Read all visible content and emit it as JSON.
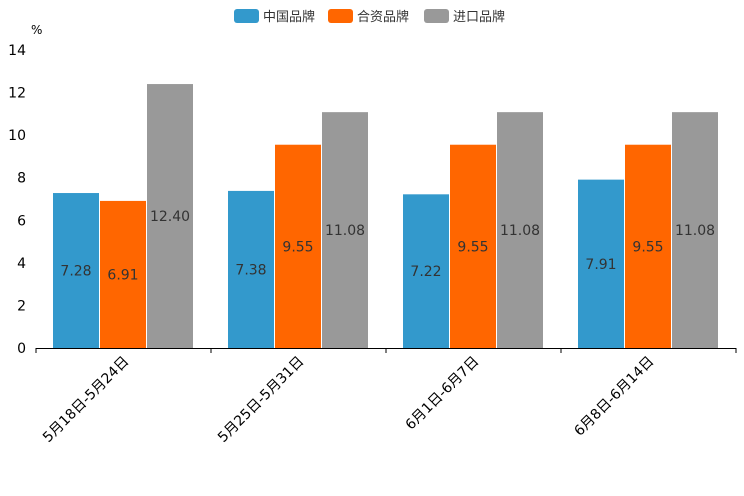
{
  "chart_data": {
    "type": "bar",
    "ylabel": "%",
    "ylim": [
      0,
      14
    ],
    "yticks": [
      "0",
      "2",
      "4",
      "6",
      "8",
      "10",
      "12",
      "14"
    ],
    "categories": [
      "5月18日-5月24日",
      "5月25日-5月31日",
      "6月1日-6月7日",
      "6月8日-6月14日"
    ],
    "series": [
      {
        "name": "中国品牌",
        "color": "#3399cc",
        "values": [
          7.28,
          7.38,
          7.22,
          7.91
        ],
        "labels": [
          "7.28",
          "7.38",
          "7.22",
          "7.91"
        ]
      },
      {
        "name": "合资品牌",
        "color": "#ff6600",
        "values": [
          6.91,
          9.55,
          9.55,
          9.55
        ],
        "labels": [
          "6.91",
          "9.55",
          "9.55",
          "9.55"
        ]
      },
      {
        "name": "进口品牌",
        "color": "#999999",
        "values": [
          12.4,
          11.08,
          11.08,
          11.08
        ],
        "labels": [
          "12.40",
          "11.08",
          "11.08",
          "11.08"
        ]
      }
    ],
    "legend": "top-center",
    "grid": false
  }
}
